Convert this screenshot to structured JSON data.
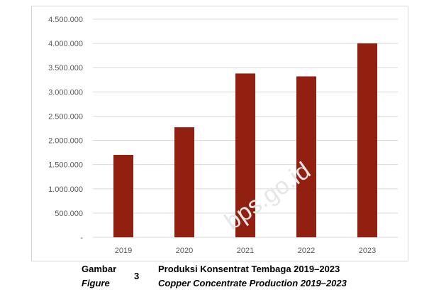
{
  "chart_data": {
    "type": "bar",
    "categories": [
      "2019",
      "2020",
      "2021",
      "2022",
      "2023"
    ],
    "values": [
      1700000,
      2270000,
      3380000,
      3320000,
      4000000
    ],
    "ylim": [
      0,
      4500000
    ],
    "yticks": [
      0,
      500000,
      1000000,
      1500000,
      2000000,
      2500000,
      3000000,
      3500000,
      4000000,
      4500000
    ],
    "ytick_labels": [
      "-",
      "500.000",
      "1.000.000",
      "1.500.000",
      "2.000.000",
      "2.500.000",
      "3.000.000",
      "3.500.000",
      "4.000.000",
      "4.500.000"
    ],
    "grid": true,
    "bar_color": "#922010",
    "grid_color": "#d9d9d9"
  },
  "caption": {
    "prefix_id": "Gambar",
    "prefix_en": "Figure",
    "number": "3",
    "title_id": "Produksi Konsentrat Tembaga 2019–2023",
    "title_en": "Copper Concentrate Production 2019–2023"
  },
  "watermark": "bps.go.id"
}
